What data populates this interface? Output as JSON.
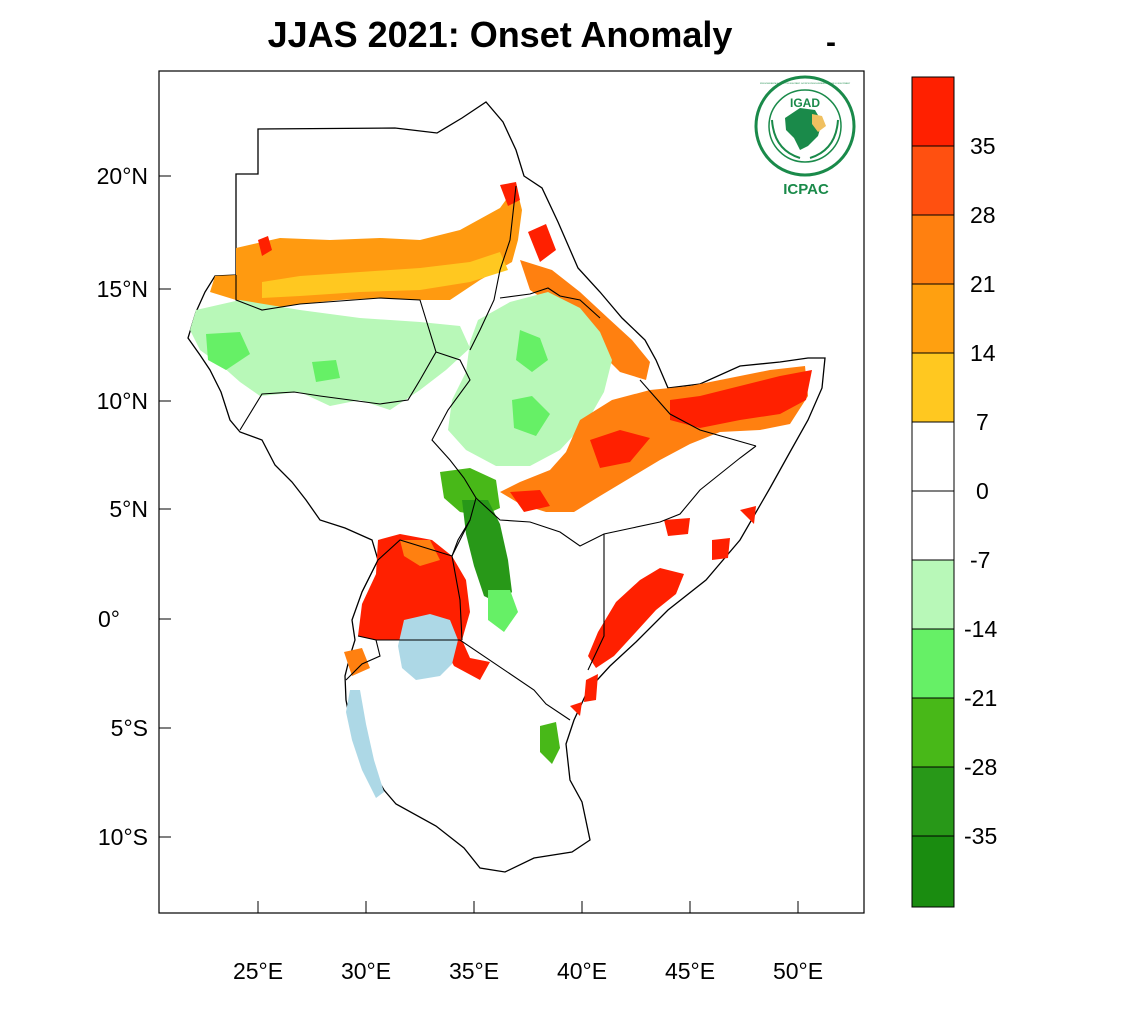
{
  "title": "JJAS 2021: Onset Anomaly",
  "title_mark": "-",
  "logo": {
    "top_text": "IGAD",
    "bottom_text": "ICPAC",
    "ring_text": "INTERGOVERNMENTAL AUTHORITY ON DEVELOPMENT · AUTORITE INTERGOUVERNEMENTALE POUR LE DEVELOPPEMENT",
    "color": "#1a8a4a"
  },
  "axes": {
    "lat_labels": [
      {
        "lat": 20,
        "text": "20°N"
      },
      {
        "lat": 15,
        "text": "15°N"
      },
      {
        "lat": 10,
        "text": "10°N"
      },
      {
        "lat": 5,
        "text": "5°N"
      },
      {
        "lat": 0,
        "text": "0°"
      },
      {
        "lat": -5,
        "text": "5°S"
      },
      {
        "lat": -10,
        "text": "10°S"
      }
    ],
    "lon_labels": [
      {
        "lon": 25,
        "text": "25°E"
      },
      {
        "lon": 30,
        "text": "30°E"
      },
      {
        "lon": 35,
        "text": "35°E"
      },
      {
        "lon": 40,
        "text": "40°E"
      },
      {
        "lon": 45,
        "text": "45°E"
      },
      {
        "lon": 50,
        "text": "50°E"
      }
    ],
    "lon_range": [
      20.5,
      53
    ],
    "lat_range": [
      -13.5,
      24.5
    ]
  },
  "colorbar": {
    "colors": [
      "#ff2000",
      "#ff5010",
      "#ff8010",
      "#ffa010",
      "#ffc820",
      "#ffffff",
      "#ffffff",
      "#b8f8b8",
      "#66f066",
      "#48b818",
      "#289818",
      "#1a8c10"
    ],
    "labels": [
      "35",
      "28",
      "21",
      "14",
      "7",
      "0",
      "-7",
      "-14",
      "-21",
      "-28",
      "-35"
    ]
  },
  "legend_colors": {
    "water": "#add8e6",
    "border": "#000000"
  }
}
